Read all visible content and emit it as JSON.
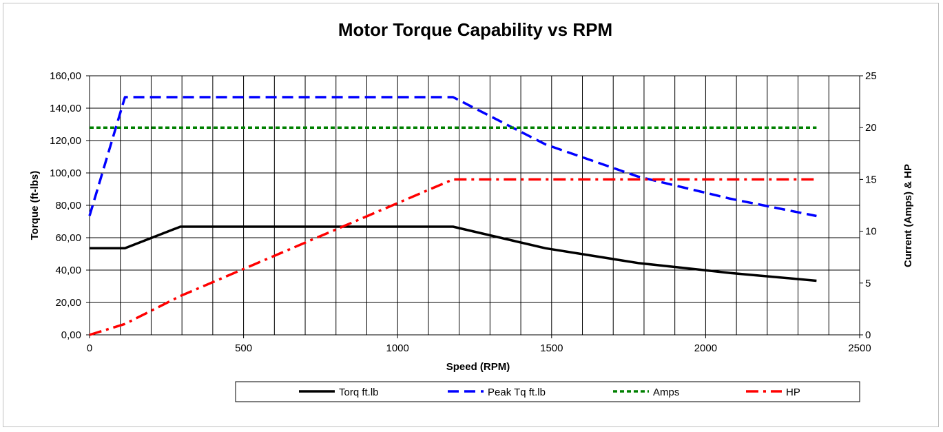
{
  "chart_data": {
    "type": "line",
    "title": "Motor Torque Capability vs RPM",
    "xlabel": "Speed (RPM)",
    "ylabel": "Torque (ft-lbs)",
    "y2label": "Current (Amps) & HP",
    "xlim": [
      0,
      2500
    ],
    "ylim": [
      0,
      160
    ],
    "y2lim": [
      0,
      25
    ],
    "x_ticks": [
      "0",
      "500",
      "1000",
      "1500",
      "2000",
      "2500"
    ],
    "y_ticks": [
      "0,00",
      "20,00",
      "40,00",
      "60,00",
      "80,00",
      "100,00",
      "120,00",
      "140,00",
      "160,00"
    ],
    "y2_ticks": [
      "0",
      "5",
      "10",
      "15",
      "20",
      "25"
    ],
    "grid": true,
    "legend_position": "bottom",
    "series": [
      {
        "name": "Torq ft.lb",
        "axis": "left",
        "color": "#000000",
        "style": "solid",
        "x": [
          0,
          115,
          295,
          1180,
          1480,
          1780,
          2080,
          2360
        ],
        "y": [
          53.5,
          53.5,
          66.8,
          66.8,
          53.5,
          44.4,
          38.2,
          33.4
        ]
      },
      {
        "name": "Peak Tq ft.lb",
        "axis": "left",
        "color": "#0000ff",
        "style": "dash",
        "x": [
          0,
          115,
          1180,
          1480,
          1780,
          2080,
          2360
        ],
        "y": [
          73.5,
          146.8,
          146.8,
          117.6,
          97.8,
          84.1,
          73.4
        ]
      },
      {
        "name": "Amps",
        "axis": "right",
        "color": "#008000",
        "style": "dot",
        "x": [
          0,
          2360
        ],
        "y": [
          20,
          20
        ]
      },
      {
        "name": "HP",
        "axis": "right",
        "color": "#ff0000",
        "style": "dashdot",
        "x": [
          0,
          115,
          295,
          1180,
          1480,
          1780,
          2080,
          2360
        ],
        "y": [
          0,
          1.05,
          3.75,
          15,
          15,
          15,
          15,
          15
        ]
      }
    ]
  }
}
